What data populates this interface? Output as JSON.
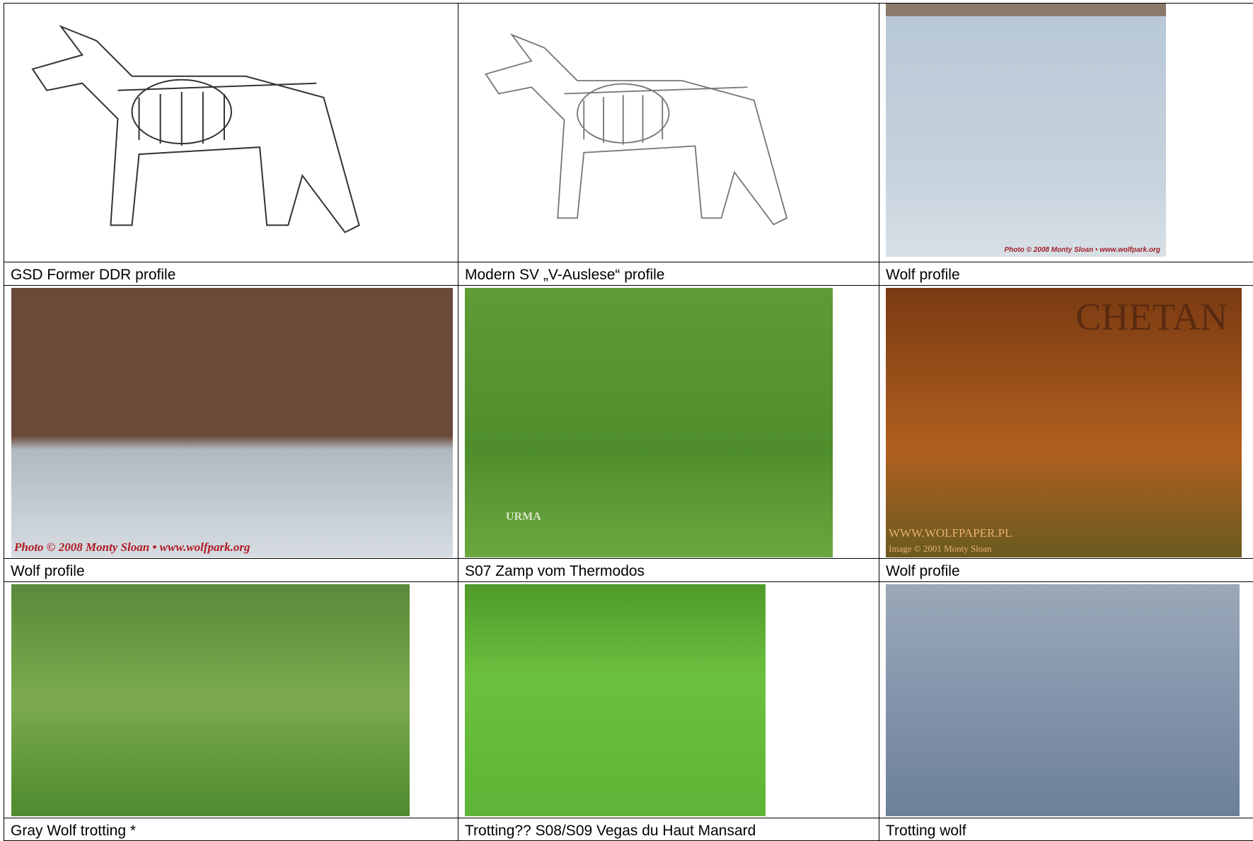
{
  "table": {
    "rows": [
      [
        {
          "caption": "GSD Former DDR profile"
        },
        {
          "caption": "Modern SV „V-Auslese“ profile"
        },
        {
          "caption": "Wolf profile",
          "watermark": "Photo © 2008 Monty Sloan • www.wolfpark.org"
        }
      ],
      [
        {
          "caption": "Wolf profile",
          "watermark": "Photo © 2008 Monty Sloan • www.wolfpark.org"
        },
        {
          "caption": "S07 Zamp vom Thermodos",
          "watermark": "URMA"
        },
        {
          "caption": "Wolf profile",
          "watermark": "CHETAN",
          "watermark2": "WWW.WOLFPAPER.PL",
          "watermark3": "Image © 2001 Monty Sloan"
        }
      ],
      [
        {
          "caption": "Gray Wolf trotting *"
        },
        {
          "caption": "Trotting?? S08/S09 Vegas du Haut Mansard"
        },
        {
          "caption": "Trotting wolf"
        }
      ]
    ]
  }
}
